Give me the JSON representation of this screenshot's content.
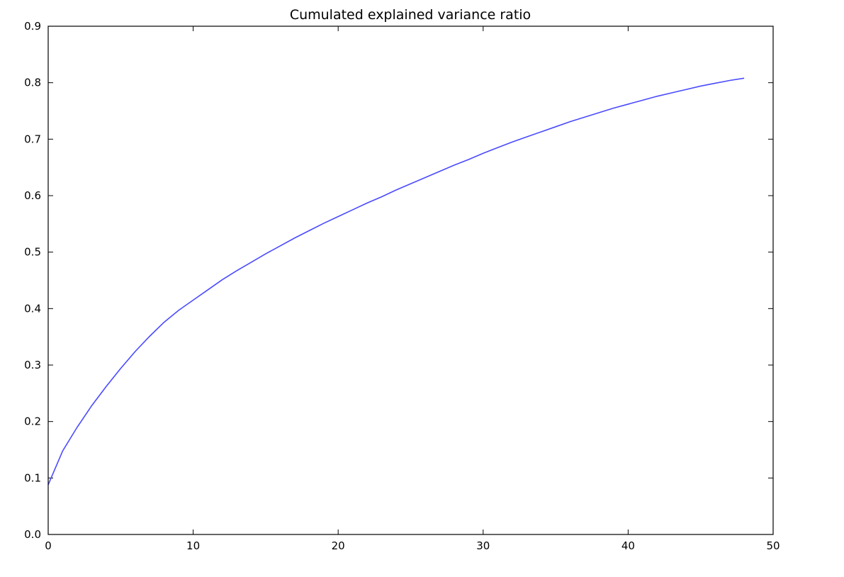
{
  "chart_data": {
    "type": "line",
    "title": "Cumulated explained variance ratio",
    "xlabel": "",
    "ylabel": "",
    "xlim": [
      0,
      50
    ],
    "ylim": [
      0,
      0.9
    ],
    "xticks": [
      "0",
      "10",
      "20",
      "30",
      "40",
      "50"
    ],
    "yticks": [
      "0.0",
      "0.1",
      "0.2",
      "0.3",
      "0.4",
      "0.5",
      "0.6",
      "0.7",
      "0.8",
      "0.9"
    ],
    "grid": false,
    "line_color": "#4a4aff",
    "series": [
      {
        "x": [
          0,
          1,
          2,
          3,
          4,
          5,
          6,
          7,
          8,
          9,
          10,
          11,
          12,
          13,
          14,
          15,
          16,
          17,
          18,
          19,
          20,
          21,
          22,
          23,
          24,
          25,
          26,
          27,
          28,
          29,
          30,
          31,
          32,
          33,
          34,
          35,
          36,
          37,
          38,
          39,
          40,
          41,
          42,
          43,
          44,
          45,
          46,
          47,
          48
        ],
        "y": [
          0.088,
          0.148,
          0.19,
          0.228,
          0.262,
          0.294,
          0.324,
          0.351,
          0.376,
          0.397,
          0.415,
          0.433,
          0.451,
          0.467,
          0.482,
          0.497,
          0.511,
          0.525,
          0.538,
          0.551,
          0.563,
          0.575,
          0.587,
          0.598,
          0.61,
          0.621,
          0.632,
          0.643,
          0.654,
          0.664,
          0.675,
          0.685,
          0.695,
          0.704,
          0.713,
          0.722,
          0.731,
          0.739,
          0.747,
          0.755,
          0.762,
          0.769,
          0.776,
          0.782,
          0.788,
          0.794,
          0.799,
          0.804,
          0.808
        ]
      }
    ]
  }
}
